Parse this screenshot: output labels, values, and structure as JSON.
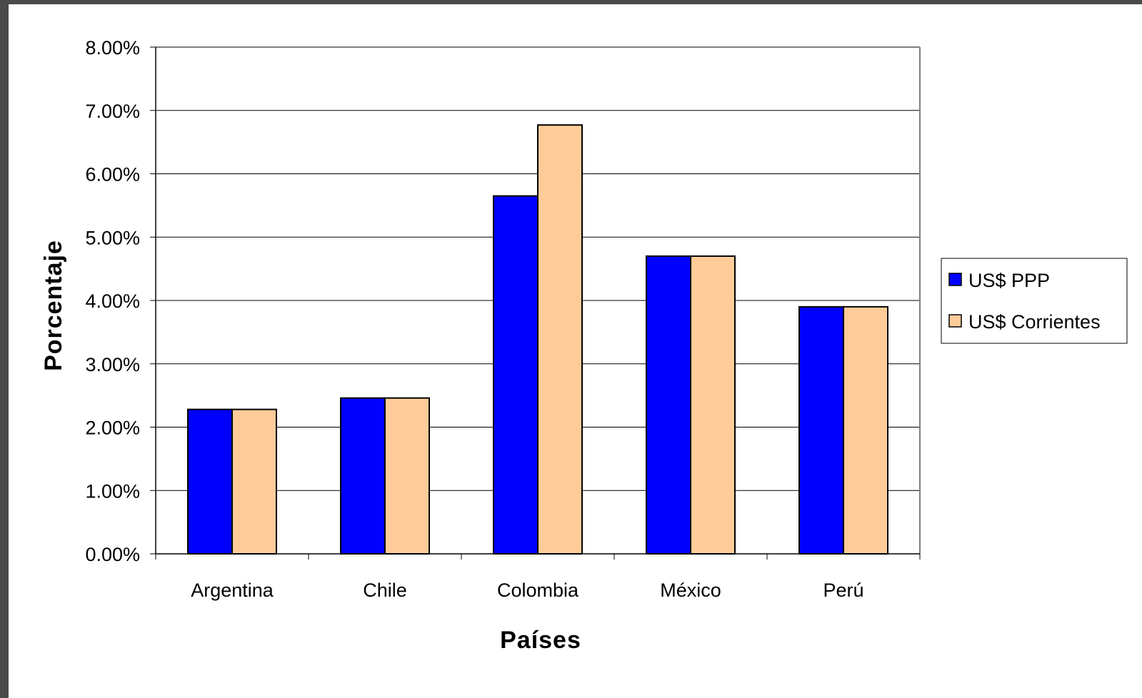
{
  "chart_data": {
    "type": "bar",
    "title": "",
    "xlabel": "Países",
    "ylabel": "Porcentaje",
    "categories": [
      "Argentina",
      "Chile",
      "Colombia",
      "México",
      "Perú"
    ],
    "series": [
      {
        "name": "US$ PPP",
        "color": "#0000ff",
        "values": [
          2.28,
          2.46,
          5.65,
          4.7,
          3.9
        ]
      },
      {
        "name": "US$ Corrientes",
        "color": "#ffcc99",
        "values": [
          2.28,
          2.46,
          6.77,
          4.7,
          3.9
        ]
      }
    ],
    "ylim": [
      0,
      8
    ],
    "yticks": [
      "0.00%",
      "1.00%",
      "2.00%",
      "3.00%",
      "4.00%",
      "5.00%",
      "6.00%",
      "7.00%",
      "8.00%"
    ],
    "grid": true,
    "legend_position": "right"
  }
}
